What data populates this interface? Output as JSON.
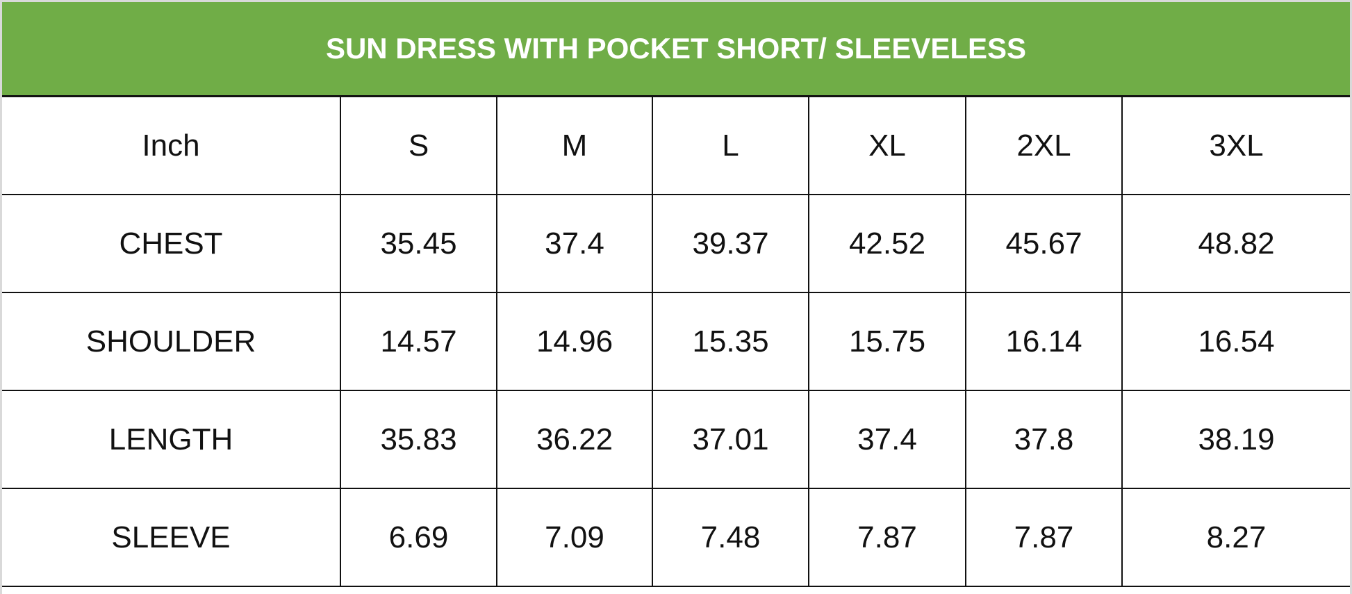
{
  "title": "SUN DRESS WITH POCKET SHORT/ SLEEVELESS",
  "header_color": "#70AD47",
  "columns": [
    "Inch",
    "S",
    "M",
    "L",
    "XL",
    "2XL",
    "3XL"
  ],
  "rows": [
    [
      "CHEST",
      "35.45",
      "37.4",
      "39.37",
      "42.52",
      "45.67",
      "48.82"
    ],
    [
      "SHOULDER",
      "14.57",
      "14.96",
      "15.35",
      "15.75",
      "16.14",
      "16.54"
    ],
    [
      "LENGTH",
      "35.83",
      "36.22",
      "37.01",
      "37.4",
      "37.8",
      "38.19"
    ],
    [
      "SLEEVE",
      "6.69",
      "7.09",
      "7.48",
      "7.87",
      "7.87",
      "8.27"
    ]
  ]
}
